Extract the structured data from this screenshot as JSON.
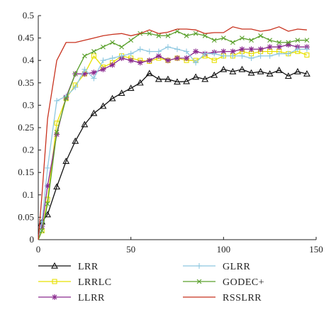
{
  "chart_data": {
    "type": "line",
    "title": "",
    "xlabel": "",
    "ylabel": "",
    "xlim": [
      0,
      150
    ],
    "ylim": [
      0,
      0.5
    ],
    "xticks": [
      "0",
      "50",
      "100",
      "150"
    ],
    "yticks": [
      "0",
      "0.05",
      "0.1",
      "0.15",
      "0.2",
      "0.25",
      "0.3",
      "0.35",
      "0.4",
      "0.45",
      "0.5"
    ],
    "grid": false,
    "legend": "bottom, two columns",
    "x": [
      0,
      2,
      5,
      10,
      15,
      20,
      25,
      30,
      35,
      40,
      45,
      50,
      55,
      60,
      65,
      70,
      75,
      80,
      85,
      90,
      95,
      100,
      105,
      110,
      115,
      120,
      125,
      130,
      135,
      140,
      145
    ],
    "series": [
      {
        "name": "LRR",
        "color": "#111111",
        "marker": "triangle",
        "values": [
          0.03,
          0.04,
          0.056,
          0.118,
          0.175,
          0.22,
          0.257,
          0.282,
          0.298,
          0.315,
          0.327,
          0.338,
          0.35,
          0.371,
          0.358,
          0.358,
          0.352,
          0.353,
          0.363,
          0.358,
          0.367,
          0.38,
          0.375,
          0.38,
          0.372,
          0.375,
          0.37,
          0.378,
          0.365,
          0.375,
          0.37
        ]
      },
      {
        "name": "LRRLC",
        "color": "#e8e000",
        "marker": "square",
        "values": [
          0.0,
          0.02,
          0.09,
          0.26,
          0.315,
          0.345,
          0.37,
          0.41,
          0.385,
          0.395,
          0.41,
          0.405,
          0.4,
          0.398,
          0.405,
          0.4,
          0.405,
          0.4,
          0.4,
          0.41,
          0.4,
          0.41,
          0.41,
          0.42,
          0.415,
          0.42,
          0.42,
          0.42,
          0.415,
          0.42,
          0.412
        ]
      },
      {
        "name": "LLRR",
        "color": "#8a2a8e",
        "marker": "star",
        "values": [
          0.01,
          0.03,
          0.12,
          0.235,
          0.318,
          0.37,
          0.37,
          0.373,
          0.38,
          0.39,
          0.405,
          0.4,
          0.395,
          0.4,
          0.41,
          0.4,
          0.405,
          0.405,
          0.42,
          0.415,
          0.418,
          0.42,
          0.42,
          0.425,
          0.425,
          0.425,
          0.43,
          0.43,
          0.435,
          0.43,
          0.43
        ]
      },
      {
        "name": "GLRR",
        "color": "#8ec8e0",
        "marker": "plus",
        "values": [
          0.0,
          0.04,
          0.16,
          0.31,
          0.32,
          0.34,
          0.38,
          0.36,
          0.4,
          0.405,
          0.41,
          0.415,
          0.425,
          0.42,
          0.42,
          0.43,
          0.425,
          0.42,
          0.395,
          0.415,
          0.415,
          0.41,
          0.41,
          0.41,
          0.405,
          0.41,
          0.41,
          0.415,
          0.415,
          0.425,
          0.425
        ]
      },
      {
        "name": "GODEC+",
        "color": "#5aa02c",
        "marker": "x",
        "values": [
          0.0,
          0.02,
          0.08,
          0.24,
          0.315,
          0.37,
          0.41,
          0.42,
          0.43,
          0.44,
          0.43,
          0.445,
          0.46,
          0.46,
          0.455,
          0.455,
          0.465,
          0.455,
          0.46,
          0.455,
          0.445,
          0.45,
          0.44,
          0.45,
          0.445,
          0.455,
          0.445,
          0.44,
          0.44,
          0.445,
          0.445
        ]
      },
      {
        "name": "RSSLRR",
        "color": "#c8321e",
        "marker": "none",
        "values": [
          0.0,
          0.1,
          0.27,
          0.4,
          0.44,
          0.44,
          0.445,
          0.45,
          0.455,
          0.458,
          0.46,
          0.455,
          0.46,
          0.468,
          0.46,
          0.463,
          0.47,
          0.47,
          0.468,
          0.46,
          0.462,
          0.462,
          0.475,
          0.47,
          0.47,
          0.465,
          0.468,
          0.475,
          0.465,
          0.47,
          0.468
        ]
      }
    ]
  }
}
